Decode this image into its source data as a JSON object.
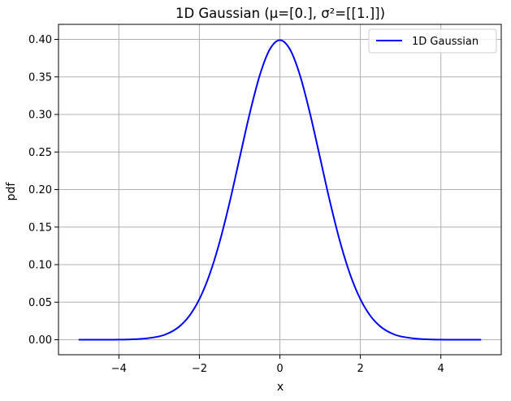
{
  "chart_data": {
    "type": "line",
    "title": "1D Gaussian (μ=[0.], σ²=[[1.]])",
    "xlabel": "x",
    "ylabel": "pdf",
    "xlim": [
      -5.5,
      5.5
    ],
    "ylim": [
      -0.02,
      0.42
    ],
    "xticks": [
      -4,
      -2,
      0,
      2,
      4
    ],
    "xtick_labels": [
      "−4",
      "−2",
      "0",
      "2",
      "4"
    ],
    "yticks": [
      0.0,
      0.05,
      0.1,
      0.15,
      0.2,
      0.25,
      0.3,
      0.35,
      0.4
    ],
    "ytick_labels": [
      "0.00",
      "0.05",
      "0.10",
      "0.15",
      "0.20",
      "0.25",
      "0.30",
      "0.35",
      "0.40"
    ],
    "grid": true,
    "legend_position": "top-right",
    "series": [
      {
        "name": "1D Gaussian",
        "color": "#0000ff",
        "x": [
          -5.0,
          -4.5,
          -4.0,
          -3.5,
          -3.0,
          -2.75,
          -2.5,
          -2.25,
          -2.0,
          -1.75,
          -1.5,
          -1.25,
          -1.0,
          -0.75,
          -0.5,
          -0.25,
          0.0,
          0.25,
          0.5,
          0.75,
          1.0,
          1.25,
          1.5,
          1.75,
          2.0,
          2.25,
          2.5,
          2.75,
          3.0,
          3.5,
          4.0,
          4.5,
          5.0
        ],
        "y": [
          0.0,
          0.0,
          0.0001,
          0.0009,
          0.0044,
          0.0091,
          0.0175,
          0.0317,
          0.054,
          0.0863,
          0.1295,
          0.1826,
          0.242,
          0.3011,
          0.3521,
          0.3867,
          0.3989,
          0.3867,
          0.3521,
          0.3011,
          0.242,
          0.1826,
          0.1295,
          0.0863,
          0.054,
          0.0317,
          0.0175,
          0.0091,
          0.0044,
          0.0009,
          0.0001,
          0.0,
          0.0
        ]
      }
    ]
  }
}
